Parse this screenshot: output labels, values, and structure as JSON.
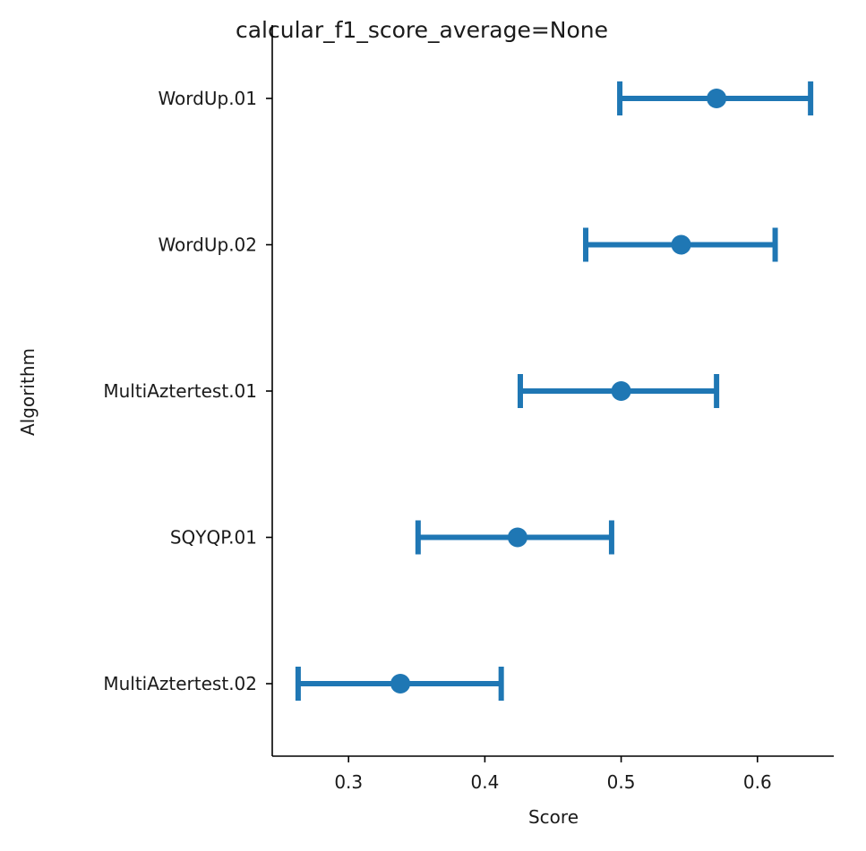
{
  "chart_data": {
    "type": "pointplot",
    "orientation": "horizontal",
    "title": "calcular_f1_score_average=None",
    "xlabel": "Score",
    "ylabel": "Algorithm",
    "xlim": [
      0.244,
      0.656
    ],
    "xticks": [
      0.3,
      0.4,
      0.5,
      0.6
    ],
    "xtick_labels": [
      "0.3",
      "0.4",
      "0.5",
      "0.6"
    ],
    "categories": [
      "WordUp.01",
      "WordUp.02",
      "MultiAztertest.01",
      "SQYQP.01",
      "MultiAztertest.02"
    ],
    "series": [
      {
        "estimates": [
          0.57,
          0.544,
          0.5,
          0.424,
          0.338
        ],
        "ci_low": [
          0.499,
          0.474,
          0.426,
          0.351,
          0.263
        ],
        "ci_high": [
          0.639,
          0.613,
          0.57,
          0.493,
          0.412
        ],
        "color": "#1f77b4"
      }
    ],
    "grid": false,
    "legend": "none",
    "spines": [
      "left",
      "bottom"
    ]
  }
}
